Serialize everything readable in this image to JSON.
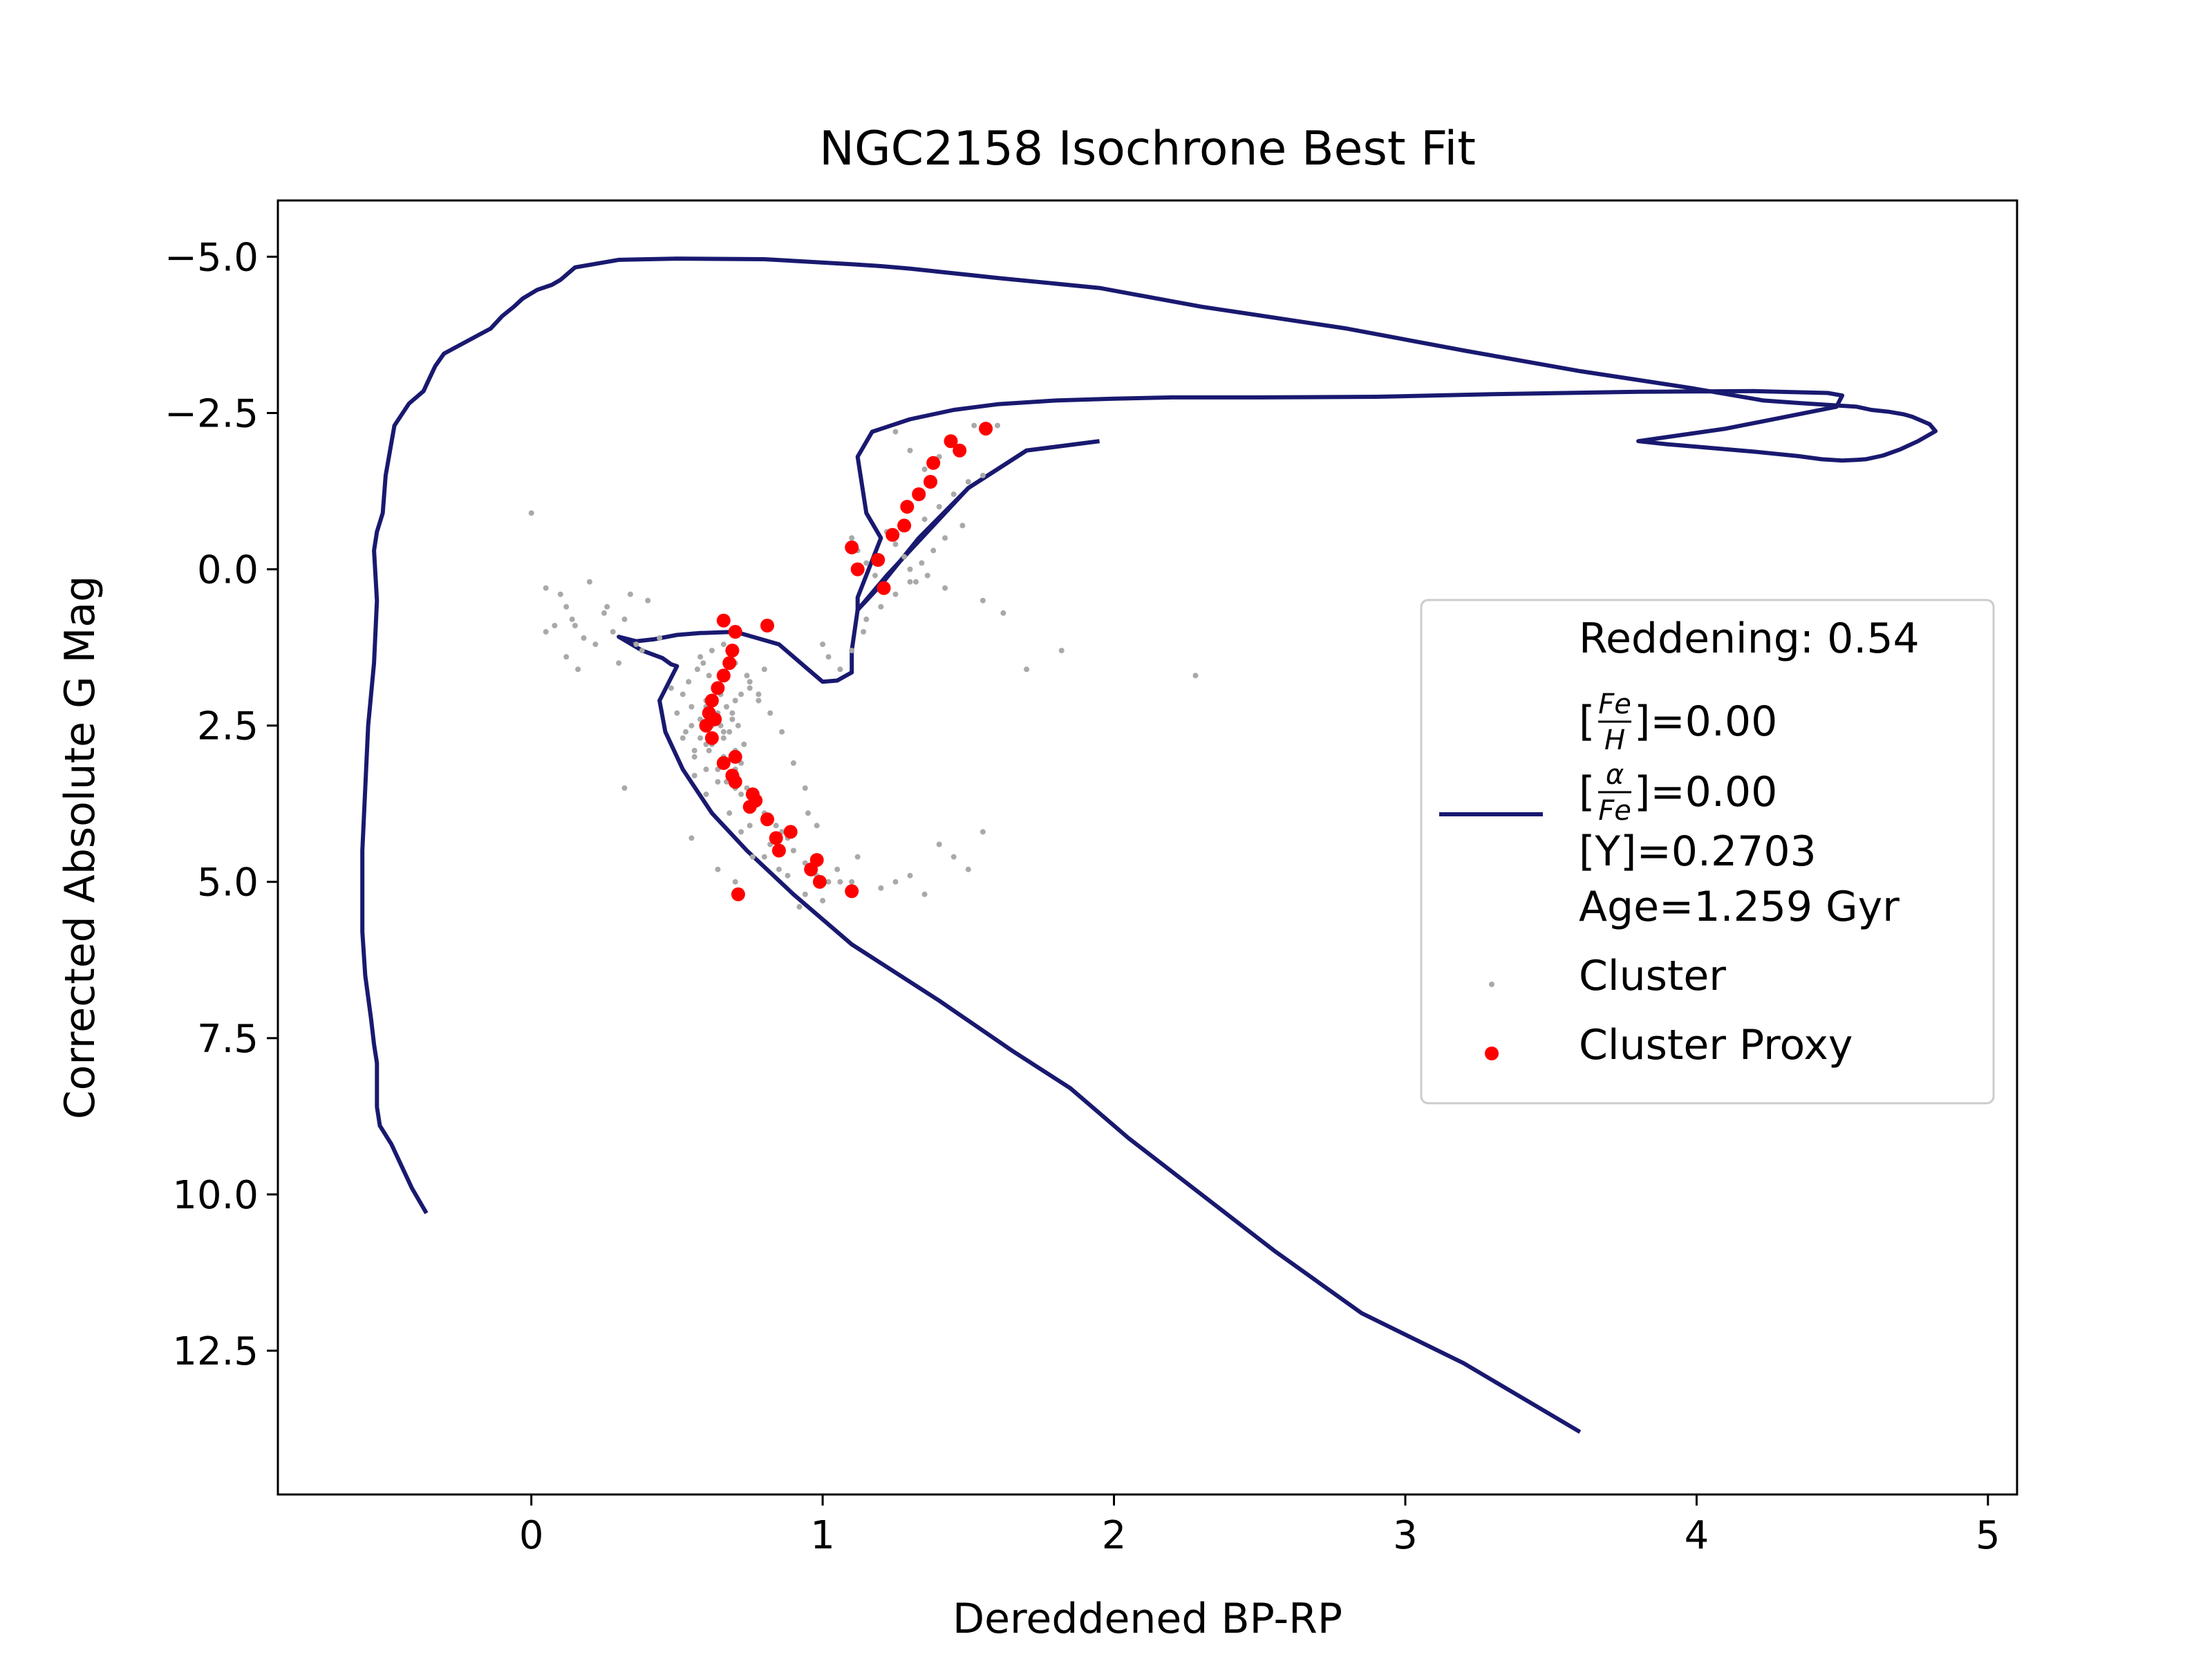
{
  "chart_data": {
    "type": "scatter",
    "title": "NGC2158 Isochrone Best Fit",
    "xlabel": "Dereddened BP-RP",
    "ylabel": "Corrected Absolute G Mag",
    "xlim": [
      -0.87,
      5.1
    ],
    "ylim": [
      14.8,
      -5.9
    ],
    "y_inverted": true,
    "xticks": [
      0,
      1,
      2,
      3,
      4,
      5
    ],
    "xtick_labels": [
      "0",
      "1",
      "2",
      "3",
      "4",
      "5"
    ],
    "yticks": [
      -5.0,
      -2.5,
      0.0,
      2.5,
      5.0,
      7.5,
      10.0,
      12.5
    ],
    "ytick_labels": [
      "−5.0",
      "−2.5",
      "0.0",
      "2.5",
      "5.0",
      "7.5",
      "10.0",
      "12.5"
    ],
    "legend_position": "center-right",
    "colors": {
      "isochrone": "#191970",
      "cluster": "#a9a9a9",
      "proxy": "#ff0000",
      "legend_border": "#cccccc"
    },
    "legend": {
      "reddening": "Reddening: 0.54",
      "feh_num": "Fe",
      "feh_den": "H",
      "feh_value": "]=0.00",
      "alpha_num": "α",
      "alpha_den": "Fe",
      "alpha_value": "]=0.00",
      "open_bracket": "[",
      "y_line": "[Y]=0.2703",
      "age_line": "Age=1.259 Gyr",
      "cluster_label": "Cluster",
      "proxy_label": "Cluster Proxy"
    },
    "series": [
      {
        "kind": "line",
        "role": "isochrone",
        "segments": [
          {
            "x": [
              -0.36,
              -0.41,
              -0.45,
              -0.48,
              -0.52,
              -0.53,
              -0.53,
              -0.53,
              -0.54,
              -0.55,
              -0.57,
              -0.58,
              -0.58,
              -0.57,
              -0.56,
              -0.54,
              -0.53,
              -0.54,
              -0.53,
              -0.51,
              -0.5,
              -0.47,
              -0.42,
              -0.37,
              -0.35,
              -0.33,
              -0.3,
              -0.26,
              -0.22,
              -0.18,
              -0.14,
              -0.1,
              -0.06,
              -0.03,
              0.02,
              0.07,
              0.1,
              0.15,
              0.3,
              0.5,
              0.8,
              1.1,
              1.2,
              1.3,
              1.6,
              1.95,
              2.3,
              2.8,
              3.2,
              3.6,
              3.98,
              4.23,
              4.35,
              4.55,
              4.6,
              4.66,
              4.71,
              4.74,
              4.77,
              4.8,
              4.82,
              4.76,
              4.7,
              4.64,
              4.58,
              4.55,
              4.5,
              4.43,
              4.35,
              4.2,
              4.1,
              4.0,
              3.9,
              3.8,
              4.1,
              4.48,
              4.5,
              4.45,
              4.2,
              3.8,
              3.3,
              2.9,
              2.5,
              2.2,
              2.0,
              1.8,
              1.6,
              1.45,
              1.3,
              1.17,
              1.12,
              1.15,
              1.2,
              1.12,
              1.12,
              1.2,
              1.33,
              1.5,
              1.7,
              1.95
            ],
            "y": [
              10.3,
              9.9,
              9.5,
              9.2,
              8.9,
              8.6,
              8.4,
              7.9,
              7.6,
              7.2,
              6.5,
              5.8,
              4.5,
              3.5,
              2.5,
              1.5,
              0.5,
              -0.3,
              -0.6,
              -0.9,
              -1.5,
              -2.3,
              -2.65,
              -2.85,
              -3.05,
              -3.25,
              -3.45,
              -3.55,
              -3.65,
              -3.75,
              -3.85,
              -4.05,
              -4.2,
              -4.33,
              -4.47,
              -4.55,
              -4.63,
              -4.83,
              -4.95,
              -4.97,
              -4.96,
              -4.88,
              -4.85,
              -4.81,
              -4.66,
              -4.5,
              -4.2,
              -3.85,
              -3.5,
              -3.17,
              -2.9,
              -2.7,
              -2.66,
              -2.6,
              -2.55,
              -2.52,
              -2.48,
              -2.44,
              -2.38,
              -2.32,
              -2.21,
              -2.05,
              -1.92,
              -1.82,
              -1.76,
              -1.75,
              -1.74,
              -1.76,
              -1.81,
              -1.88,
              -1.92,
              -1.96,
              -2.0,
              -2.05,
              -2.25,
              -2.6,
              -2.78,
              -2.82,
              -2.85,
              -2.84,
              -2.8,
              -2.76,
              -2.75,
              -2.75,
              -2.73,
              -2.7,
              -2.64,
              -2.55,
              -2.4,
              -2.2,
              -1.8,
              -0.9,
              -0.5,
              0.45,
              0.65,
              0.25,
              -0.5,
              -1.3,
              -1.9,
              -2.05
            ]
          },
          {
            "x": [
              1.95,
              1.7,
              1.5,
              1.34,
              1.22,
              1.12,
              1.1,
              1.1,
              1.05,
              1.0,
              0.95,
              0.85,
              0.7,
              0.58,
              0.5,
              0.42,
              0.36,
              0.3,
              0.38,
              0.45,
              0.48,
              0.5,
              0.44,
              0.46,
              0.52,
              0.62,
              0.74,
              0.9,
              1.1,
              1.4,
              1.65,
              1.85,
              2.05,
              2.3,
              2.55,
              2.85,
              3.2,
              3.6
            ],
            "y": [
              -2.05,
              -1.9,
              -1.3,
              -0.5,
              0.1,
              0.65,
              1.3,
              1.65,
              1.78,
              1.8,
              1.6,
              1.2,
              1.0,
              1.02,
              1.05,
              1.12,
              1.15,
              1.08,
              1.3,
              1.42,
              1.52,
              1.55,
              2.1,
              2.6,
              3.2,
              3.9,
              4.5,
              5.2,
              6.0,
              6.9,
              7.7,
              8.3,
              9.1,
              10.0,
              10.9,
              11.9,
              12.7,
              13.8
            ]
          }
        ]
      },
      {
        "kind": "scatter",
        "role": "cluster",
        "name": "Cluster",
        "x": [
          0.52,
          0.55,
          0.58,
          0.6,
          0.62,
          0.64,
          0.66,
          0.68,
          0.7,
          0.72,
          0.54,
          0.57,
          0.59,
          0.61,
          0.63,
          0.65,
          0.67,
          0.69,
          0.71,
          0.73,
          0.56,
          0.6,
          0.64,
          0.68,
          0.72,
          0.76,
          0.8,
          0.84,
          0.88,
          0.5,
          0.53,
          0.56,
          0.62,
          0.66,
          0.7,
          0.74,
          0.78,
          0.82,
          0.86,
          0.9,
          0.94,
          0.98,
          1.02,
          0.58,
          0.62,
          0.66,
          0.7,
          0.74,
          0.78,
          0.82,
          0.86,
          0.9,
          0.94,
          0.98,
          0.64,
          0.7,
          0.76,
          0.82,
          0.88,
          0.94,
          1.0,
          1.06,
          0.48,
          0.52,
          0.56,
          0.6,
          0.68,
          0.72,
          0.8,
          0.85,
          0.92,
          0.6,
          0.65,
          0.7,
          0.75,
          0.8,
          0.6,
          0.63,
          0.66,
          0.69,
          0.72,
          0.75,
          0.78,
          0.55,
          0.58,
          0.61,
          0.64,
          0.67,
          0.7,
          0.0,
          0.1,
          0.12,
          0.15,
          0.18,
          0.05,
          0.2,
          0.25,
          0.28,
          0.32,
          0.36,
          0.4,
          0.12,
          0.16,
          0.22,
          0.3,
          0.38,
          0.44,
          0.05,
          0.08,
          0.14,
          0.26,
          0.34,
          1.1,
          1.12,
          1.15,
          1.18,
          1.2,
          1.22,
          1.25,
          1.28,
          1.3,
          1.32,
          1.35,
          1.4,
          1.45,
          1.5,
          1.55,
          1.15,
          1.2,
          1.25,
          1.3,
          1.38,
          1.42,
          1.48,
          1.0,
          1.02,
          1.06,
          1.1,
          1.14,
          1.34,
          1.36,
          1.42,
          1.55,
          1.62,
          1.25,
          1.3,
          1.35,
          1.4,
          1.45,
          1.52,
          1.6,
          1.7,
          1.82,
          2.28,
          1.4,
          1.45,
          1.5,
          1.55,
          1.05,
          1.1,
          1.2,
          1.25,
          1.3,
          1.35,
          0.32,
          0.55,
          0.75,
          0.95,
          1.12
        ],
        "y": [
          2.0,
          2.2,
          2.4,
          2.1,
          2.5,
          2.3,
          2.7,
          2.6,
          2.9,
          3.1,
          1.8,
          1.6,
          1.5,
          1.7,
          1.9,
          2.0,
          2.2,
          2.4,
          2.5,
          2.8,
          3.0,
          3.2,
          3.4,
          3.3,
          3.6,
          3.8,
          3.9,
          4.1,
          4.3,
          2.3,
          2.6,
          2.9,
          2.8,
          3.0,
          3.2,
          3.5,
          3.7,
          4.0,
          4.2,
          4.5,
          4.7,
          4.9,
          5.0,
          1.4,
          1.3,
          1.2,
          1.5,
          1.7,
          2.0,
          2.3,
          2.6,
          3.1,
          3.5,
          4.1,
          4.8,
          5.0,
          4.6,
          4.4,
          4.9,
          5.2,
          5.3,
          5.0,
          1.9,
          2.7,
          3.3,
          3.6,
          3.9,
          4.2,
          4.6,
          4.8,
          5.4,
          2.8,
          2.5,
          2.1,
          1.8,
          1.6,
          2.2,
          2.4,
          2.6,
          2.3,
          2.0,
          1.9,
          2.1,
          2.5,
          2.7,
          2.9,
          3.2,
          3.4,
          3.5,
          -0.9,
          0.4,
          0.6,
          0.9,
          1.1,
          0.3,
          0.2,
          0.7,
          1.0,
          0.8,
          1.2,
          0.5,
          1.4,
          1.6,
          1.2,
          1.5,
          1.3,
          1.1,
          1.0,
          0.9,
          0.8,
          0.6,
          0.4,
          -0.5,
          -0.3,
          -0.1,
          0.1,
          0.3,
          -0.6,
          -0.4,
          -0.2,
          0.0,
          0.2,
          -0.8,
          -1.0,
          -1.2,
          -1.4,
          -1.5,
          0.8,
          0.6,
          0.4,
          0.2,
          -0.3,
          -0.5,
          -0.7,
          1.2,
          1.4,
          1.6,
          1.3,
          1.0,
          -0.1,
          0.1,
          0.3,
          0.5,
          0.7,
          -2.2,
          -1.9,
          -1.6,
          -1.8,
          -2.0,
          -2.3,
          -2.3,
          1.6,
          1.3,
          1.7,
          4.4,
          4.6,
          4.8,
          4.2,
          4.8,
          5.0,
          5.1,
          5.0,
          4.9,
          5.2,
          3.5,
          4.3,
          4.1,
          3.9,
          4.6
        ]
      },
      {
        "kind": "scatter",
        "role": "proxy",
        "name": "Cluster Proxy",
        "x": [
          1.56,
          1.44,
          1.47,
          1.38,
          1.37,
          1.33,
          1.29,
          1.28,
          1.24,
          1.1,
          1.19,
          1.21,
          1.12,
          0.66,
          0.81,
          0.7,
          0.69,
          0.68,
          0.66,
          0.64,
          0.62,
          0.61,
          0.63,
          0.6,
          0.62,
          0.66,
          0.7,
          0.69,
          0.7,
          0.76,
          0.75,
          0.77,
          0.81,
          0.84,
          0.85,
          0.89,
          0.98,
          0.96,
          0.99,
          1.1,
          0.71
        ],
        "y": [
          -2.25,
          -2.05,
          -1.9,
          -1.7,
          -1.4,
          -1.2,
          -1.0,
          -0.7,
          -0.55,
          -0.35,
          -0.15,
          0.3,
          0.0,
          0.82,
          0.9,
          1.0,
          1.3,
          1.5,
          1.7,
          1.9,
          2.1,
          2.3,
          2.4,
          2.5,
          2.7,
          3.1,
          3.0,
          3.3,
          3.4,
          3.6,
          3.8,
          3.7,
          4.0,
          4.3,
          4.5,
          4.2,
          4.65,
          4.8,
          5.0,
          5.15,
          5.2
        ]
      }
    ]
  }
}
